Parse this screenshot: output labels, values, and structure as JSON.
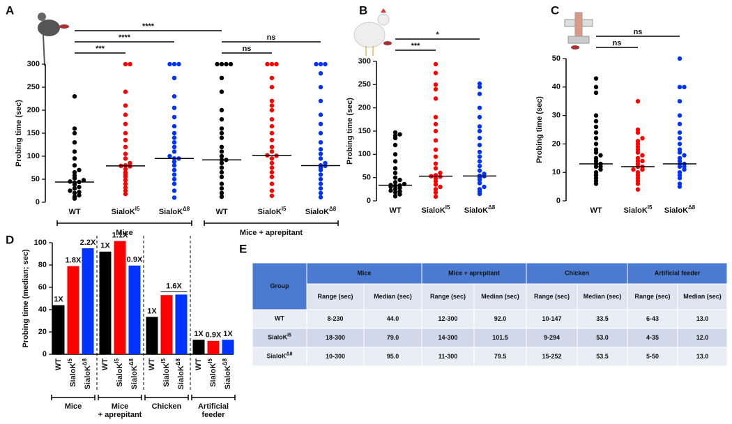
{
  "panel_labels": [
    "A",
    "B",
    "C",
    "D",
    "E"
  ],
  "chart_data": [
    {
      "type": "strip",
      "ylabel": "Probing time (sec)",
      "ylim": [
        0,
        300
      ],
      "yticks": [
        0,
        50,
        100,
        150,
        200,
        250,
        300
      ],
      "groups": [
        {
          "name": "WT",
          "color": "#000000",
          "median": 44,
          "values": [
            8,
            12,
            15,
            20,
            22,
            25,
            30,
            33,
            38,
            42,
            44,
            45,
            48,
            52,
            58,
            65,
            70,
            80,
            95,
            110,
            130,
            150,
            160,
            230
          ]
        },
        {
          "name": "SialoK",
          "sup": "I5",
          "color": "#ff0000",
          "median": 79,
          "values": [
            18,
            25,
            32,
            40,
            48,
            55,
            60,
            65,
            72,
            78,
            79,
            80,
            85,
            95,
            105,
            120,
            135,
            150,
            170,
            190,
            210,
            240,
            300,
            300
          ]
        },
        {
          "name": "SialoK",
          "sup": "Δ8",
          "color": "#0033ff",
          "median": 95,
          "values": [
            10,
            25,
            40,
            50,
            60,
            70,
            80,
            88,
            95,
            95,
            100,
            110,
            120,
            130,
            140,
            150,
            165,
            185,
            205,
            230,
            270,
            300,
            300,
            300
          ]
        },
        {
          "name": "WT",
          "color": "#000000",
          "median": 92,
          "values": [
            12,
            20,
            30,
            40,
            55,
            65,
            75,
            85,
            92,
            92,
            100,
            110,
            120,
            140,
            150,
            160,
            180,
            200,
            240,
            270,
            300,
            300,
            300,
            300
          ]
        },
        {
          "name": "SialoK",
          "sup": "I5",
          "color": "#ff0000",
          "median": 101.5,
          "values": [
            14,
            25,
            40,
            55,
            65,
            75,
            85,
            95,
            101,
            102,
            110,
            120,
            135,
            150,
            165,
            180,
            200,
            210,
            220,
            250,
            270,
            300,
            300,
            300
          ]
        },
        {
          "name": "SialoK",
          "sup": "Δ8",
          "color": "#0033ff",
          "median": 79.5,
          "values": [
            11,
            20,
            30,
            40,
            50,
            60,
            70,
            75,
            79,
            80,
            85,
            95,
            105,
            115,
            130,
            150,
            170,
            190,
            220,
            250,
            280,
            300,
            300,
            300
          ]
        }
      ],
      "comparisons": [
        {
          "groups": [
            0,
            1
          ],
          "label": "***"
        },
        {
          "groups": [
            0,
            2
          ],
          "label": "****"
        },
        {
          "groups": [
            3,
            4
          ],
          "label": "ns"
        },
        {
          "groups": [
            3,
            5
          ],
          "label": "ns"
        },
        {
          "groups": [
            0,
            3
          ],
          "label": "****"
        }
      ],
      "spans": [
        {
          "label": [
            "Mice"
          ],
          "groups": [
            0,
            2
          ]
        },
        {
          "label": [
            "Mice + aprepitant"
          ],
          "groups": [
            3,
            5
          ]
        }
      ]
    },
    {
      "type": "strip",
      "ylabel": "Probing time (sec)",
      "ylim": [
        0,
        300
      ],
      "yticks": [
        0,
        50,
        100,
        150,
        200,
        250,
        300
      ],
      "groups": [
        {
          "name": "WT",
          "color": "#000000",
          "median": 33.5,
          "values": [
            10,
            14,
            18,
            20,
            22,
            25,
            28,
            30,
            32,
            33,
            34,
            36,
            40,
            45,
            50,
            60,
            70,
            85,
            100,
            120,
            135,
            140,
            147,
            143
          ]
        },
        {
          "name": "SialoK",
          "sup": "I5",
          "color": "#ff0000",
          "median": 53,
          "values": [
            9,
            18,
            25,
            30,
            35,
            42,
            48,
            52,
            53,
            55,
            60,
            70,
            80,
            95,
            110,
            130,
            150,
            165,
            180,
            220,
            250,
            275,
            294,
            240
          ]
        },
        {
          "name": "SialoK",
          "sup": "Δ8",
          "color": "#0033ff",
          "median": 53.5,
          "values": [
            15,
            20,
            25,
            30,
            38,
            45,
            50,
            53,
            54,
            58,
            65,
            75,
            85,
            95,
            105,
            120,
            135,
            150,
            160,
            200,
            230,
            245,
            252,
            180
          ]
        }
      ],
      "comparisons": [
        {
          "groups": [
            0,
            1
          ],
          "label": "***"
        },
        {
          "groups": [
            0,
            2
          ],
          "label": "*"
        }
      ]
    },
    {
      "type": "strip",
      "ylabel": "Probing time (sec)",
      "ylim": [
        0,
        50
      ],
      "yticks": [
        0,
        10,
        20,
        30,
        40,
        50
      ],
      "groups": [
        {
          "name": "WT",
          "color": "#000000",
          "median": 13,
          "values": [
            6,
            7,
            8,
            9,
            10,
            11,
            12,
            12,
            13,
            13,
            14,
            15,
            16,
            17,
            18,
            20,
            22,
            24,
            26,
            28,
            30,
            40,
            43,
            38
          ]
        },
        {
          "name": "SialoK",
          "sup": "I5",
          "color": "#ff0000",
          "median": 12,
          "values": [
            4,
            6,
            7,
            8,
            9,
            10,
            11,
            11,
            12,
            12,
            13,
            14,
            15,
            16,
            17,
            18,
            19,
            20,
            21,
            22,
            24,
            25,
            35,
            14
          ]
        },
        {
          "name": "SialoK",
          "sup": "Δ8",
          "color": "#0033ff",
          "median": 13,
          "values": [
            5,
            6,
            8,
            9,
            10,
            11,
            12,
            12,
            13,
            13,
            14,
            15,
            16,
            17,
            18,
            20,
            22,
            24,
            27,
            30,
            35,
            40,
            40,
            50
          ]
        }
      ],
      "comparisons": [
        {
          "groups": [
            0,
            1
          ],
          "label": "ns"
        },
        {
          "groups": [
            0,
            2
          ],
          "label": "ns"
        }
      ]
    },
    {
      "type": "bar",
      "ylabel": "Probing time (median; sec)",
      "ylim": [
        0,
        100
      ],
      "yticks": [
        0,
        20,
        40,
        60,
        80,
        100
      ],
      "categories": [
        {
          "name": "WT"
        },
        {
          "name": "SialoK",
          "sup": "I5"
        },
        {
          "name": "SialoK",
          "sup": "Δ8"
        }
      ],
      "colors": [
        "#000000",
        "#ff0000",
        "#0033ff"
      ],
      "groups": [
        {
          "label": [
            "Mice"
          ],
          "values": [
            44,
            79,
            95
          ],
          "annotations": [
            {
              "label": "1X",
              "bars": [
                0
              ]
            },
            {
              "label": "1.8X",
              "bars": [
                1
              ]
            },
            {
              "label": "2.2X",
              "bars": [
                2
              ]
            }
          ]
        },
        {
          "label": [
            "Mice",
            "+ aprepitant"
          ],
          "values": [
            92,
            101.5,
            79.5
          ],
          "annotations": [
            {
              "label": "1X",
              "bars": [
                0
              ]
            },
            {
              "label": "1.1X",
              "bars": [
                1
              ]
            },
            {
              "label": "0.9X",
              "bars": [
                2
              ]
            }
          ]
        },
        {
          "label": [
            "Chicken"
          ],
          "values": [
            33.5,
            53,
            53.5
          ],
          "annotations": [
            {
              "label": "1X",
              "bars": [
                0
              ]
            },
            {
              "label": "1.6X",
              "bars": [
                1,
                2
              ]
            }
          ]
        },
        {
          "label": [
            "Artificial",
            "feeder"
          ],
          "values": [
            13,
            12,
            13
          ],
          "annotations": [
            {
              "label": "1X",
              "bars": [
                0
              ]
            },
            {
              "label": "0.9X",
              "bars": [
                1
              ]
            },
            {
              "label": "1X",
              "bars": [
                2
              ]
            }
          ]
        }
      ]
    }
  ],
  "table": {
    "corner": "Group",
    "groups": [
      "Mice",
      "Mice + aprepitant",
      "Chicken",
      "Artificial feeder"
    ],
    "subheaders": [
      "Range (sec)",
      "Median (sec)",
      "Range (sec)",
      "Median (sec)",
      "Range (sec)",
      "Median (sec)",
      "Range (sec)",
      "Median (sec)"
    ],
    "rows": [
      {
        "label": [
          "WT"
        ],
        "cells": [
          "8-230",
          "44.0",
          "12-300",
          "92.0",
          "10-147",
          "33.5",
          "6-43",
          "13.0"
        ]
      },
      {
        "label": [
          "SialoK",
          "I5"
        ],
        "cells": [
          "18-300",
          "79.0",
          "14-300",
          "101.5",
          "9-294",
          "53.0",
          "4-35",
          "12.0"
        ]
      },
      {
        "label": [
          "SialoK",
          "Δ8"
        ],
        "cells": [
          "10-300",
          "95.0",
          "11-300",
          "79.5",
          "15-252",
          "53.5",
          "5-50",
          "13.0"
        ]
      }
    ]
  }
}
